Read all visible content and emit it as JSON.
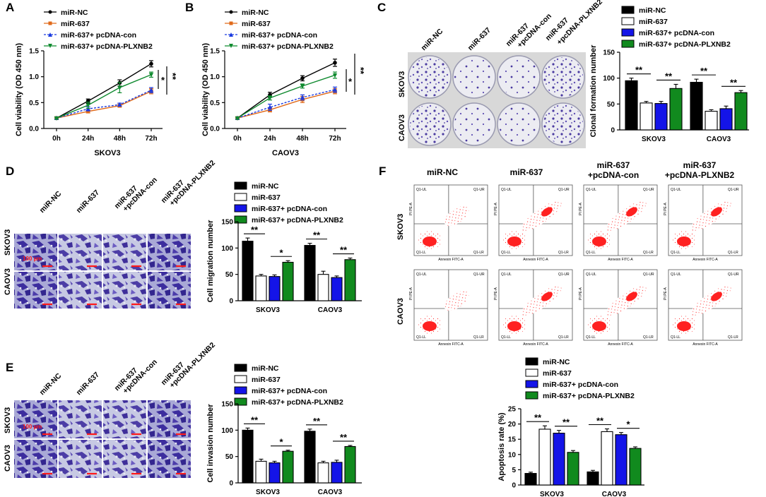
{
  "figure": {
    "panel_labels": [
      "A",
      "B",
      "C",
      "D",
      "E",
      "F"
    ],
    "groups": [
      "miR-NC",
      "miR-637",
      "miR-637+ pcDNA-con",
      "miR-637+ pcDNA-PLXNB2"
    ],
    "colors": {
      "miR-NC": "#000000",
      "miR-637": "#e06a1a",
      "miR-637+ pcDNA-con": "#1a3ae0",
      "miR-637+ pcDNA-PLXNB2": "#0f8a2f"
    },
    "bar_colors": [
      "#000000",
      "#ffffff",
      "#1414e8",
      "#118a1e"
    ],
    "image_columns": [
      "miR-NC",
      "miR-637",
      "miR-637\n+pcDNA-con",
      "miR-637\n+pcDNA-PLXNB2"
    ],
    "image_rows": [
      "SKOV3",
      "CAOV3"
    ],
    "scale_bar_label": "100 µm",
    "flow_quadrants": [
      "Q1-UL",
      "Q1-UR",
      "Q1-LL",
      "Q1-LR"
    ],
    "flow_axes": {
      "x": "Annexin FITC-A",
      "y": "PI PE-A"
    }
  },
  "chart_data": [
    {
      "id": "A",
      "type": "line",
      "xlabel": "SKOV3",
      "ylabel": "Cell viability (OD 450 nm)",
      "categories": [
        "0h",
        "24h",
        "48h",
        "72h"
      ],
      "ylim": [
        0,
        1.5
      ],
      "yticks": [
        0.0,
        0.5,
        1.0,
        1.5
      ],
      "series": [
        {
          "name": "miR-NC",
          "values": [
            0.2,
            0.53,
            0.88,
            1.25
          ],
          "errors": [
            0.02,
            0.04,
            0.06,
            0.06
          ]
        },
        {
          "name": "miR-637",
          "values": [
            0.2,
            0.33,
            0.44,
            0.72
          ],
          "errors": [
            0.02,
            0.03,
            0.03,
            0.05
          ]
        },
        {
          "name": "miR-637+ pcDNA-con",
          "values": [
            0.2,
            0.38,
            0.46,
            0.74
          ],
          "errors": [
            0.02,
            0.04,
            0.03,
            0.05
          ]
        },
        {
          "name": "miR-637+ pcDNA-PLXNB2",
          "values": [
            0.2,
            0.45,
            0.79,
            1.04
          ],
          "errors": [
            0.02,
            0.06,
            0.1,
            0.05
          ]
        }
      ],
      "significance": [
        "*",
        "**"
      ]
    },
    {
      "id": "B",
      "type": "line",
      "xlabel": "CAOV3",
      "ylabel": "Cell viability (OD 450 nm)",
      "categories": [
        "0h",
        "24h",
        "48h",
        "72h"
      ],
      "ylim": [
        0,
        1.5
      ],
      "yticks": [
        0.0,
        0.5,
        1.0,
        1.5
      ],
      "series": [
        {
          "name": "miR-NC",
          "values": [
            0.2,
            0.65,
            0.97,
            1.27
          ],
          "errors": [
            0.02,
            0.05,
            0.05,
            0.07
          ]
        },
        {
          "name": "miR-637",
          "values": [
            0.2,
            0.36,
            0.56,
            0.72
          ],
          "errors": [
            0.02,
            0.04,
            0.06,
            0.05
          ]
        },
        {
          "name": "miR-637+ pcDNA-con",
          "values": [
            0.2,
            0.41,
            0.6,
            0.75
          ],
          "errors": [
            0.02,
            0.06,
            0.05,
            0.05
          ]
        },
        {
          "name": "miR-637+ pcDNA-PLXNB2",
          "values": [
            0.2,
            0.59,
            0.82,
            1.03
          ],
          "errors": [
            0.02,
            0.04,
            0.04,
            0.06
          ]
        }
      ],
      "significance": [
        "*",
        "**"
      ]
    },
    {
      "id": "C",
      "type": "bar",
      "ylabel": "Clonal formation number",
      "categories": [
        "SKOV3",
        "CAOV3"
      ],
      "ylim": [
        0,
        150
      ],
      "yticks": [
        0,
        50,
        100,
        150
      ],
      "series": [
        {
          "name": "miR-NC",
          "values": [
            95,
            92
          ],
          "errors": [
            5,
            6
          ]
        },
        {
          "name": "miR-637",
          "values": [
            52,
            36
          ],
          "errors": [
            3,
            3
          ]
        },
        {
          "name": "miR-637+ pcDNA-con",
          "values": [
            51,
            41
          ],
          "errors": [
            4,
            5
          ]
        },
        {
          "name": "miR-637+ pcDNA-PLXNB2",
          "values": [
            80,
            72
          ],
          "errors": [
            8,
            4
          ]
        }
      ],
      "significance": [
        [
          "**",
          "**"
        ],
        [
          "**",
          "**"
        ]
      ]
    },
    {
      "id": "D",
      "type": "bar",
      "ylabel": "Cell migration number",
      "categories": [
        "SKOV3",
        "CAOV3"
      ],
      "ylim": [
        0,
        150
      ],
      "yticks": [
        0,
        50,
        100,
        150
      ],
      "series": [
        {
          "name": "miR-NC",
          "values": [
            113,
            105
          ],
          "errors": [
            6,
            4
          ]
        },
        {
          "name": "miR-637",
          "values": [
            47,
            50
          ],
          "errors": [
            3,
            6
          ]
        },
        {
          "name": "miR-637+ pcDNA-con",
          "values": [
            46,
            44
          ],
          "errors": [
            3,
            3
          ]
        },
        {
          "name": "miR-637+ pcDNA-PLXNB2",
          "values": [
            73,
            78
          ],
          "errors": [
            3,
            3
          ]
        }
      ],
      "significance": [
        [
          "**",
          "*"
        ],
        [
          "**",
          "**"
        ]
      ]
    },
    {
      "id": "E",
      "type": "bar",
      "ylabel": "Cell invasion number",
      "categories": [
        "SKOV3",
        "CAOV3"
      ],
      "ylim": [
        0,
        150
      ],
      "yticks": [
        0,
        50,
        100,
        150
      ],
      "series": [
        {
          "name": "miR-NC",
          "values": [
            100,
            98
          ],
          "errors": [
            4,
            4
          ]
        },
        {
          "name": "miR-637",
          "values": [
            41,
            38
          ],
          "errors": [
            4,
            3
          ]
        },
        {
          "name": "miR-637+ pcDNA-con",
          "values": [
            38,
            39
          ],
          "errors": [
            3,
            4
          ]
        },
        {
          "name": "miR-637+ pcDNA-PLXNB2",
          "values": [
            60,
            69
          ],
          "errors": [
            2,
            2
          ]
        }
      ],
      "significance": [
        [
          "**",
          "*"
        ],
        [
          "**",
          "**"
        ]
      ]
    },
    {
      "id": "F",
      "type": "bar",
      "ylabel": "Apoptosis rate (%)",
      "categories": [
        "SKOV3",
        "CAOV3"
      ],
      "ylim": [
        0,
        25
      ],
      "yticks": [
        0,
        5,
        10,
        15,
        20,
        25
      ],
      "series": [
        {
          "name": "miR-NC",
          "values": [
            3.8,
            4.3
          ],
          "errors": [
            0.4,
            0.5
          ]
        },
        {
          "name": "miR-637",
          "values": [
            18.3,
            17.5
          ],
          "errors": [
            1.1,
            0.9
          ]
        },
        {
          "name": "miR-637+ pcDNA-con",
          "values": [
            17.0,
            16.5
          ],
          "errors": [
            0.9,
            0.7
          ]
        },
        {
          "name": "miR-637+ pcDNA-PLXNB2",
          "values": [
            10.7,
            12.0
          ],
          "errors": [
            0.6,
            0.5
          ]
        }
      ],
      "significance": [
        [
          "**",
          "**"
        ],
        [
          "**",
          "*"
        ]
      ]
    }
  ]
}
